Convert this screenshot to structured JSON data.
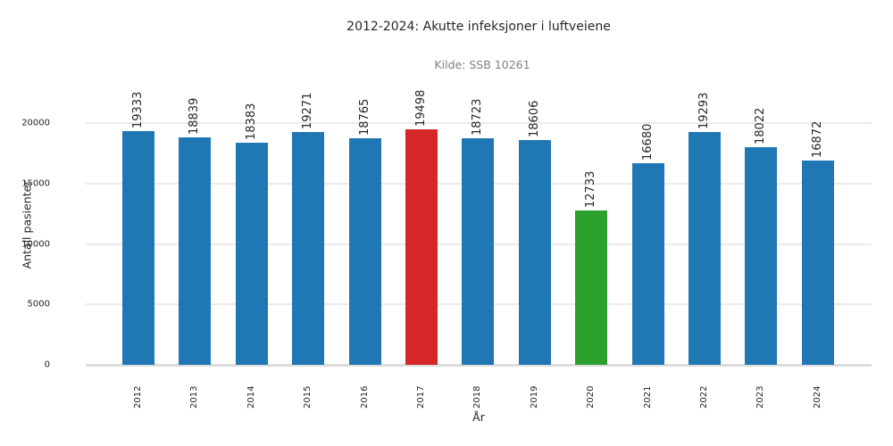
{
  "chart_data": {
    "type": "bar",
    "title": "2012-2024: Akutte infeksjoner i luftveiene",
    "subtitle": "Kilde: SSB 10261",
    "xlabel": "År",
    "ylabel": "Antall pasienter",
    "categories": [
      "2012",
      "2013",
      "2014",
      "2015",
      "2016",
      "2017",
      "2018",
      "2019",
      "2020",
      "2021",
      "2022",
      "2023",
      "2024"
    ],
    "values": [
      19333,
      18839,
      18383,
      19271,
      18765,
      19498,
      18723,
      18606,
      12733,
      16680,
      19293,
      18022,
      16872
    ],
    "bar_colors": [
      "#1f77b4",
      "#1f77b4",
      "#1f77b4",
      "#1f77b4",
      "#1f77b4",
      "#d62728",
      "#1f77b4",
      "#1f77b4",
      "#2ca02c",
      "#1f77b4",
      "#1f77b4",
      "#1f77b4",
      "#1f77b4"
    ],
    "highlight": {
      "max": "2017",
      "min": "2020"
    },
    "yticks": [
      0,
      5000,
      10000,
      15000,
      20000
    ],
    "ylim": [
      0,
      20000
    ],
    "grid": true,
    "legend": null,
    "data_labels": true
  },
  "colors": {
    "default": "#1f77b4",
    "max": "#d62728",
    "min": "#2ca02c",
    "grid": "#ebebeb",
    "axis": "#dcdcdc"
  }
}
